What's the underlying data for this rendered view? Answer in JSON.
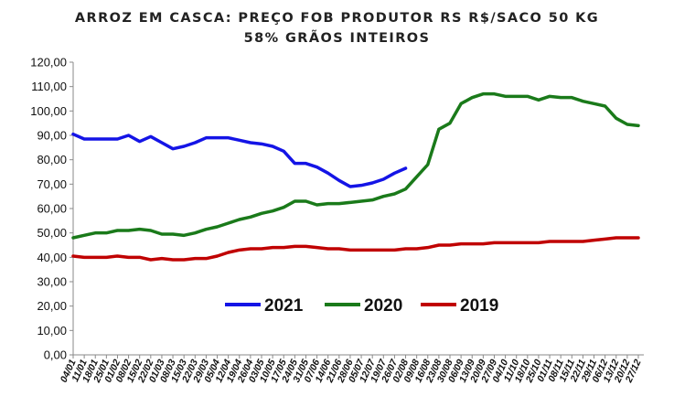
{
  "chart_data": {
    "type": "line",
    "title": "ARROZ EM CASCA: PREÇO FOB PRODUTOR RS R$/SACO 50 KG",
    "subtitle": "58% GRÃOS INTEIROS",
    "xlabel": "",
    "ylabel": "",
    "ylim": [
      0,
      120
    ],
    "yticks": [
      "0,00",
      "10,00",
      "20,00",
      "30,00",
      "40,00",
      "50,00",
      "60,00",
      "70,00",
      "80,00",
      "90,00",
      "100,00",
      "110,00",
      "120,00"
    ],
    "grid": false,
    "legend_position": "bottom-center",
    "categories": [
      "04/01",
      "11/01",
      "18/01",
      "25/01",
      "01/02",
      "08/02",
      "15/02",
      "22/02",
      "01/03",
      "08/03",
      "15/03",
      "22/03",
      "29/03",
      "05/04",
      "12/04",
      "19/04",
      "26/04",
      "03/05",
      "10/05",
      "17/05",
      "24/05",
      "31/05",
      "07/06",
      "14/06",
      "21/06",
      "28/06",
      "05/07",
      "12/07",
      "19/07",
      "26/07",
      "02/08",
      "09/08",
      "16/08",
      "23/08",
      "30/08",
      "06/09",
      "13/09",
      "20/09",
      "27/09",
      "04/10",
      "11/10",
      "18/10",
      "25/10",
      "01/11",
      "08/11",
      "15/11",
      "22/11",
      "29/11",
      "06/12",
      "13/12",
      "20/12",
      "27/12"
    ],
    "series": [
      {
        "name": "2021",
        "color": "#1414e6",
        "values": [
          90.5,
          88.5,
          88.5,
          88.5,
          88.5,
          90,
          87.5,
          89.5,
          87,
          84.5,
          85.5,
          87,
          89,
          89,
          89,
          88,
          87,
          86.5,
          85.5,
          83.5,
          78.5,
          78.5,
          77,
          74.5,
          71.5,
          69,
          69.5,
          70.5,
          72,
          74.5,
          76.5,
          null,
          null,
          null,
          null,
          null,
          null,
          null,
          null,
          null,
          null,
          null,
          null,
          null,
          null,
          null,
          null,
          null,
          null,
          null,
          null,
          null
        ]
      },
      {
        "name": "2020",
        "color": "#1a7a1a",
        "values": [
          48,
          49,
          50,
          50,
          51,
          51,
          51.5,
          51,
          49.5,
          49.5,
          49,
          50,
          51.5,
          52.5,
          54,
          55.5,
          56.5,
          58,
          59,
          60.5,
          63,
          63,
          61.5,
          62,
          62,
          62.5,
          63,
          63.5,
          65,
          66,
          68,
          73,
          78,
          92.5,
          95,
          103,
          105.5,
          107,
          107,
          106,
          106,
          106,
          104.5,
          106,
          105.5,
          105.5,
          104,
          103,
          102,
          97,
          94.5,
          94
        ]
      },
      {
        "name": "2019",
        "color": "#c00000",
        "values": [
          40.5,
          40,
          40,
          40,
          40.5,
          40,
          40,
          39,
          39.5,
          39,
          39,
          39.5,
          39.5,
          40.5,
          42,
          43,
          43.5,
          43.5,
          44,
          44,
          44.5,
          44.5,
          44,
          43.5,
          43.5,
          43,
          43,
          43,
          43,
          43,
          43.5,
          43.5,
          44,
          45,
          45,
          45.5,
          45.5,
          45.5,
          46,
          46,
          46,
          46,
          46,
          46.5,
          46.5,
          46.5,
          46.5,
          47,
          47.5,
          48,
          48,
          48
        ]
      }
    ]
  }
}
